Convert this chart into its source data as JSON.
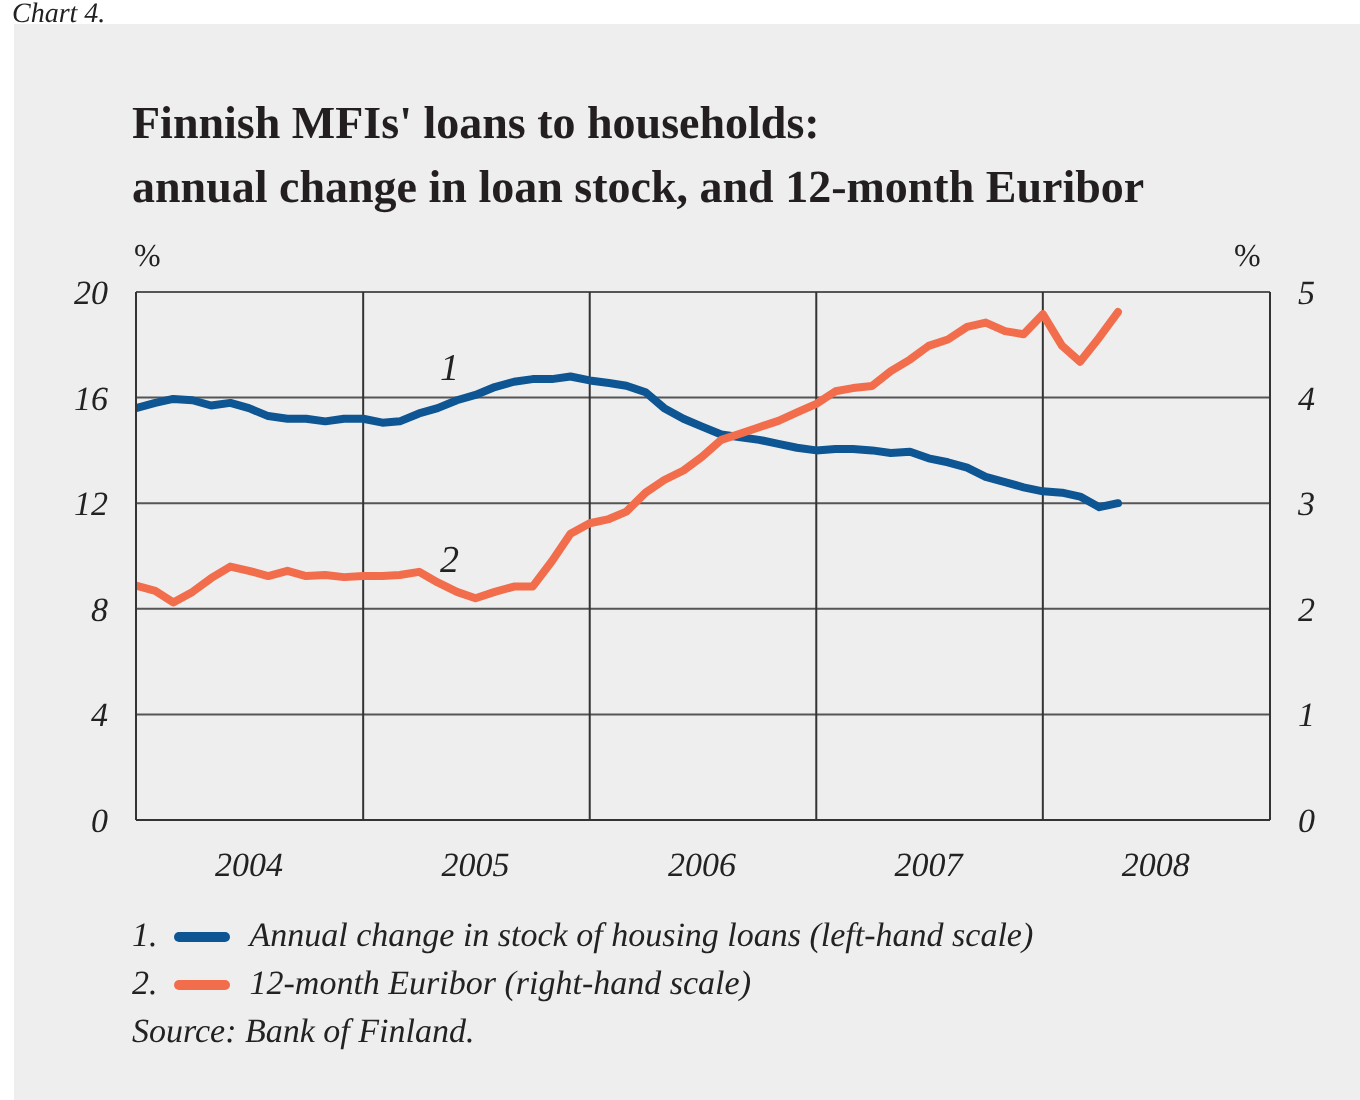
{
  "chart_data": {
    "type": "line",
    "title": "Finnish MFIs' loans to households:\nannual change in loan stock, and 12-month Euribor",
    "ylabel": "%",
    "y2label": "%",
    "x": [
      "2004-01",
      "2004-02",
      "2004-03",
      "2004-04",
      "2004-05",
      "2004-06",
      "2004-07",
      "2004-08",
      "2004-09",
      "2004-10",
      "2004-11",
      "2004-12",
      "2005-01",
      "2005-02",
      "2005-03",
      "2005-04",
      "2005-05",
      "2005-06",
      "2005-07",
      "2005-08",
      "2005-09",
      "2005-10",
      "2005-11",
      "2005-12",
      "2006-01",
      "2006-02",
      "2006-03",
      "2006-04",
      "2006-05",
      "2006-06",
      "2006-07",
      "2006-08",
      "2006-09",
      "2006-10",
      "2006-11",
      "2006-12",
      "2007-01",
      "2007-02",
      "2007-03",
      "2007-04",
      "2007-05",
      "2007-06",
      "2007-07",
      "2007-08",
      "2007-09",
      "2007-10",
      "2007-11",
      "2007-12",
      "2008-01",
      "2008-02",
      "2008-03",
      "2008-04",
      "2008-05"
    ],
    "series": [
      {
        "name": "Annual change in stock of housing loans (left-hand scale)",
        "color": "#0d5593",
        "values": [
          15.6,
          15.8,
          15.95,
          15.9,
          15.7,
          15.8,
          15.6,
          15.3,
          15.2,
          15.2,
          15.1,
          15.2,
          15.2,
          15.05,
          15.1,
          15.4,
          15.6,
          15.9,
          16.1,
          16.4,
          16.6,
          16.7,
          16.7,
          16.8,
          16.65,
          16.55,
          16.45,
          16.2,
          15.6,
          15.2,
          14.9,
          14.6,
          14.5,
          14.4,
          14.25,
          14.1,
          14.0,
          14.05,
          14.05,
          14.0,
          13.9,
          13.95,
          13.7,
          13.55,
          13.35,
          13.0,
          12.8,
          12.6,
          12.45,
          12.4,
          12.25,
          11.85,
          12.0
        ]
      },
      {
        "name": "12-month Euribor (right-hand scale)",
        "color": "#f26d4b",
        "axis": "y2",
        "values": [
          2.22,
          2.17,
          2.06,
          2.16,
          2.29,
          2.4,
          2.36,
          2.31,
          2.36,
          2.31,
          2.32,
          2.3,
          2.31,
          2.31,
          2.32,
          2.35,
          2.25,
          2.16,
          2.1,
          2.16,
          2.21,
          2.21,
          2.45,
          2.71,
          2.81,
          2.85,
          2.92,
          3.1,
          3.22,
          3.31,
          3.44,
          3.6,
          3.66,
          3.72,
          3.78,
          3.86,
          3.94,
          4.06,
          4.09,
          4.11,
          4.25,
          4.36,
          4.49,
          4.55,
          4.67,
          4.71,
          4.63,
          4.6,
          4.79,
          4.49,
          4.34,
          4.57,
          4.81
        ]
      }
    ],
    "xlim": [
      "2004-01",
      "2009-01"
    ],
    "xticks": [
      {
        "value": "2004-07",
        "label": "2004"
      },
      {
        "value": "2005-01",
        "label": null
      },
      {
        "value": "2005-07",
        "label": "2005"
      },
      {
        "value": "2006-01",
        "label": null
      },
      {
        "value": "2006-07",
        "label": "2006"
      },
      {
        "value": "2007-01",
        "label": null
      },
      {
        "value": "2007-07",
        "label": "2007"
      },
      {
        "value": "2008-01",
        "label": null
      },
      {
        "value": "2008-07",
        "label": "2008"
      }
    ],
    "ylim": [
      0,
      20
    ],
    "yticks": [
      0,
      4,
      8,
      12,
      16,
      20
    ],
    "y2lim": [
      0,
      5
    ],
    "y2ticks": [
      0,
      1,
      2,
      3,
      4,
      5
    ],
    "grid": true,
    "legend": "bottom",
    "marker": "none",
    "line_style": "solid",
    "annotations": [
      "1",
      "2",
      "1.",
      "2.",
      "Source: Bank of Finland.",
      "Chart 4."
    ]
  }
}
